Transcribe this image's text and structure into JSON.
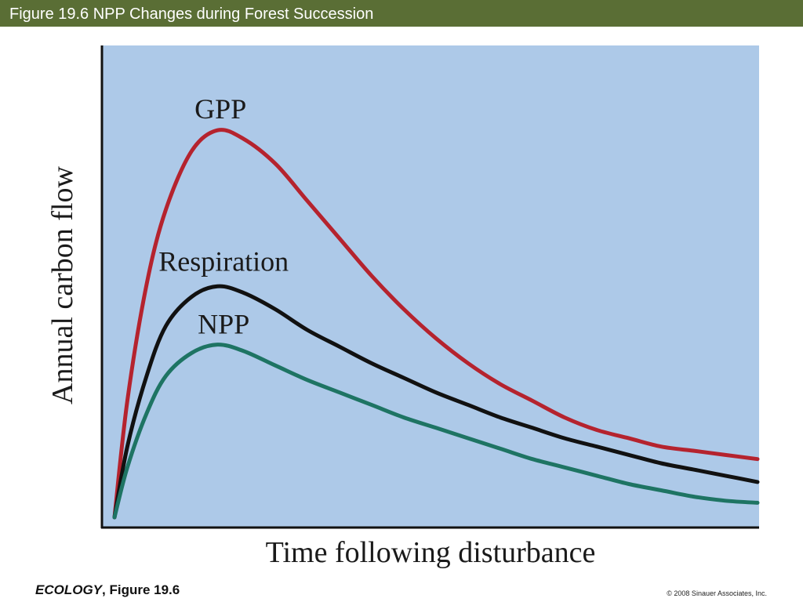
{
  "header": {
    "title": "Figure 19.6  NPP Changes during Forest Succession"
  },
  "colors": {
    "title_bar": "#5a6e35",
    "plot_bg": "#adc9e8",
    "gpp": "#b5232e",
    "respiration": "#111111",
    "npp": "#1e7463"
  },
  "chart_data": {
    "type": "line",
    "xlabel": "Time following disturbance",
    "ylabel": "Annual carbon flow",
    "x_ticks": "none",
    "y_ticks": "none",
    "grid": false,
    "legend": "none",
    "xlim": [
      0,
      100
    ],
    "ylim": [
      0,
      100
    ],
    "series": [
      {
        "name": "GPP",
        "x": [
          0,
          2,
          5,
          8,
          12,
          16,
          20,
          25,
          30,
          35,
          40,
          45,
          50,
          55,
          60,
          65,
          70,
          75,
          80,
          85,
          90,
          95,
          100
        ],
        "values": [
          0,
          28,
          56,
          74,
          88,
          93,
          91,
          85,
          76,
          67,
          58,
          50,
          43,
          37,
          32,
          28,
          24,
          21,
          19,
          17,
          16,
          15,
          14
        ]
      },
      {
        "name": "Respiration",
        "x": [
          0,
          2,
          5,
          8,
          12,
          16,
          20,
          25,
          30,
          35,
          40,
          45,
          50,
          55,
          60,
          65,
          70,
          75,
          80,
          85,
          90,
          95,
          100
        ],
        "values": [
          0,
          17,
          34,
          46,
          53,
          55.5,
          54,
          50,
          45,
          41,
          37,
          33.5,
          30,
          27,
          24,
          21.5,
          19,
          17,
          15,
          13,
          11.5,
          10,
          8.5
        ]
      },
      {
        "name": "NPP",
        "x": [
          0,
          2,
          5,
          8,
          12,
          16,
          20,
          25,
          30,
          35,
          40,
          45,
          50,
          55,
          60,
          65,
          70,
          75,
          80,
          85,
          90,
          95,
          100
        ],
        "values": [
          0,
          12,
          25,
          34,
          39.5,
          41.5,
          40,
          36.5,
          33,
          30,
          27,
          24,
          21.5,
          19,
          16.5,
          14,
          12,
          10,
          8,
          6.5,
          5,
          4,
          3.5
        ]
      }
    ],
    "annotations": [
      {
        "text": "GPP",
        "series": "GPP"
      },
      {
        "text": "Respiration",
        "series": "Respiration"
      },
      {
        "text": "NPP",
        "series": "NPP"
      }
    ]
  },
  "footer": {
    "book": "ECOLOGY",
    "figure": ", Figure 19.6",
    "copyright": "© 2008 Sinauer Associates, Inc."
  }
}
